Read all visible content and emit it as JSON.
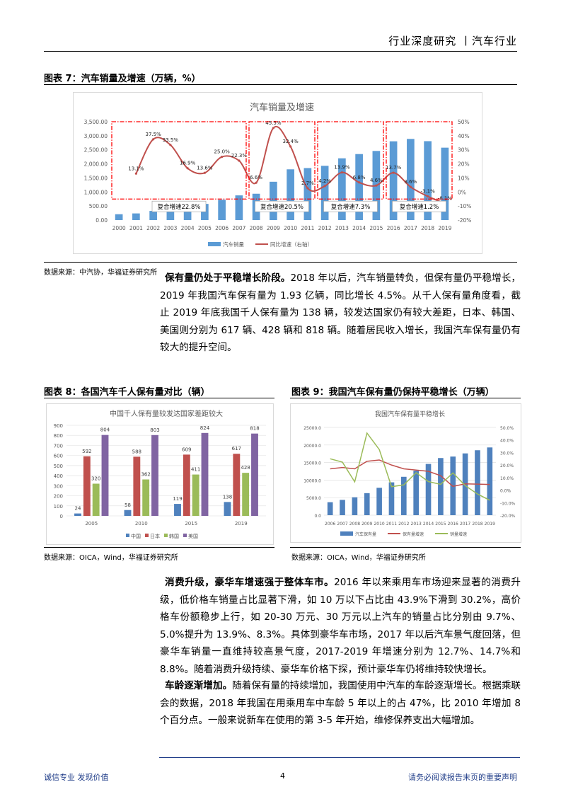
{
  "header": {
    "title": "行业深度研究 丨汽车行业"
  },
  "figure7": {
    "title": "图表 7：汽车销量及增速（万辆，%）",
    "source": "数据来源：中汽协，华福证券研究所",
    "chart_data": {
      "type": "bar+line",
      "title": "汽车销量及增速",
      "categories": [
        "2000",
        "2001",
        "2002",
        "2003",
        "2004",
        "2005",
        "2006",
        "2007",
        "2008",
        "2009",
        "2010",
        "2011",
        "2012",
        "2013",
        "2014",
        "2015",
        "2016",
        "2017",
        "2018",
        "2019"
      ],
      "series": [
        {
          "name": "汽车销量",
          "type": "bar",
          "axis": "left",
          "color": "#5b9bd5",
          "values": [
            209,
            237,
            325,
            444,
            507,
            576,
            722,
            879,
            938,
            1364,
            1806,
            1851,
            1931,
            2198,
            2349,
            2460,
            2803,
            2888,
            2808,
            2577
          ]
        },
        {
          "name": "同比增速（右轴）",
          "type": "line",
          "axis": "right",
          "color": "#c0504d",
          "values": [
            null,
            13.1,
            37.5,
            33.5,
            16.9,
            13.6,
            25.0,
            22.3,
            6.6,
            45.5,
            32.4,
            2.7,
            4.2,
            13.9,
            6.8,
            4.6,
            13.7,
            3.6,
            -3.1,
            -8.1
          ],
          "labels": [
            null,
            "13.1%",
            "37.5%",
            "33.5%",
            "16.9%",
            "13.6%",
            "25.0%",
            "22.3%",
            "6.6%",
            "45.5%",
            "32.4%",
            "2.7%",
            "4.2%",
            "13.9%",
            "6.8%",
            "4.6%",
            "13.7%",
            "3.6%",
            "-3.1%",
            "-8.1%"
          ]
        }
      ],
      "ylim_left": [
        0,
        3500
      ],
      "yticks_left": [
        "0.00",
        "500.00",
        "1,000.00",
        "1,500.00",
        "2,000.00",
        "2,500.00",
        "3,000.00",
        "3,500.00"
      ],
      "ylim_right": [
        -20,
        50
      ],
      "yticks_right": [
        "-20%",
        "-10%",
        "0%",
        "10%",
        "20%",
        "30%",
        "40%",
        "50%"
      ],
      "annotations": [
        {
          "range": [
            "2000",
            "2007"
          ],
          "text": "复合增速22.8%"
        },
        {
          "range": [
            "2008",
            "2011"
          ],
          "text": "复合增速20.5%"
        },
        {
          "range": [
            "2012",
            "2015"
          ],
          "text": "复合增速7.3%"
        },
        {
          "range": [
            "2016",
            "2019"
          ],
          "text": "复合增速1.2%"
        }
      ],
      "legend": "bottom",
      "grid": false,
      "annotation_color": "#ff0000"
    }
  },
  "para1": {
    "lead": "保有量仍处于平稳增长阶段。",
    "body": "2018 年以后，汽车销量转负，但保有量仍平稳增长，2019 年我国汽车保有量为 1.93 亿辆，同比增长 4.5%。从千人保有量角度看，截止 2019 年底我国千人保有量为 138 辆，较发达国家仍有较大差距，日本、韩国、美国则分别为 617 辆、428 辆和 818 辆。随着居民收入增长，我国汽车保有量仍有较大的提升空间。"
  },
  "figure8": {
    "title": "图表 8：各国汽车千人保有量对比（辆）",
    "source": "数据来源：OICA，Wind，华福证券研究所",
    "chart_data": {
      "type": "bar",
      "title": "中国千人保有量较发达国家差距较大",
      "categories": [
        "2005",
        "2010",
        "2015",
        "2019"
      ],
      "series": [
        {
          "name": "中国",
          "color": "#4f81bd",
          "values": [
            24,
            58,
            119,
            138
          ]
        },
        {
          "name": "日本",
          "color": "#c0504d",
          "values": [
            592,
            588,
            609,
            617
          ]
        },
        {
          "name": "韩国",
          "color": "#9bbb59",
          "values": [
            320,
            362,
            411,
            428
          ]
        },
        {
          "name": "美国",
          "color": "#8064a2",
          "values": [
            804,
            803,
            824,
            818
          ]
        }
      ],
      "ylim": [
        0,
        900
      ],
      "yticks": [
        "0",
        "100",
        "200",
        "300",
        "400",
        "500",
        "600",
        "700",
        "800",
        "900"
      ],
      "legend": "bottom",
      "grid": true
    }
  },
  "figure9": {
    "title": "图表 9：我国汽车保有量仍保持平稳增长（万辆）",
    "source": "数据来源：OICA，Wind，华福证券研究所",
    "chart_data": {
      "type": "bar+line",
      "title": "我国汽车保有量平稳增长",
      "categories": [
        "2006",
        "2007",
        "2008",
        "2009",
        "2010",
        "2011",
        "2012",
        "2013",
        "2014",
        "2015",
        "2016",
        "2017",
        "2018",
        "2019"
      ],
      "series": [
        {
          "name": "汽车保有量",
          "type": "bar",
          "axis": "left",
          "color": "#4f81bd",
          "values": [
            3697,
            4358,
            5100,
            6281,
            7802,
            9356,
            10933,
            12670,
            14598,
            16284,
            16700,
            17600,
            18500,
            19300
          ]
        },
        {
          "name": "保有量增速",
          "type": "line",
          "axis": "right",
          "color": "#c0504d",
          "values": [
            17,
            18,
            17,
            23,
            24,
            20,
            17,
            16,
            15,
            11.5,
            3,
            5,
            4.8,
            4.5
          ]
        },
        {
          "name": "销量增速",
          "type": "line",
          "axis": "right",
          "color": "#9bbb59",
          "values": [
            25,
            22.3,
            6.6,
            45.5,
            32.4,
            2.7,
            4.2,
            13.9,
            6.8,
            4.6,
            13.7,
            3.6,
            -3.1,
            -8.1
          ]
        }
      ],
      "ylim_left": [
        0,
        25000
      ],
      "yticks_left": [
        "0.0",
        "5000.0",
        "10000.0",
        "15000.0",
        "20000.0",
        "25000.0"
      ],
      "ylim_right": [
        -20,
        50
      ],
      "yticks_right": [
        "-20.0%",
        "-10.0%",
        "0.0%",
        "10.0%",
        "20.0%",
        "30.0%",
        "40.0%",
        "50.0%"
      ],
      "legend": "bottom",
      "grid": true
    }
  },
  "para2": {
    "lead": "消费升级，豪华车增速强于整体车市。",
    "body": "2016 年以来乘用车市场迎来显著的消费升级，低价格车销量占比显著下滑，如 10 万以下占比由 43.9%下滑到 30.2%，高价格车份额稳步上行，如 20-30 万元、30 万元以上汽车的销量占比分别由 9.7%、5.0%提升为 13.9%、8.3%。具体到豪华车市场，2017 年以后汽车景气度回落，但豪华车销量一直维持较高景气度，2017-2019 年增速分别为 12.7%、14.7%和 8.8%。随着消费升级持续、豪华车价格下探，预计豪华车仍将维持较快增长。"
  },
  "para3": {
    "lead": "车龄逐渐增加。",
    "body": "随着保有量的持续增加，我国使用中汽车的车龄逐渐增长。根据乘联会的数据，2018 年我国在用乘用车中车龄 5 年以上的占 47%，比 2010 年增加 8 个百分点。一般来说新车在使用的第 3-5 年开始，维修保养支出大幅增加。"
  },
  "footer": {
    "left": "诚信专业  发现价值",
    "page": "4",
    "right": "请务必阅读报告末页的重要声明"
  }
}
